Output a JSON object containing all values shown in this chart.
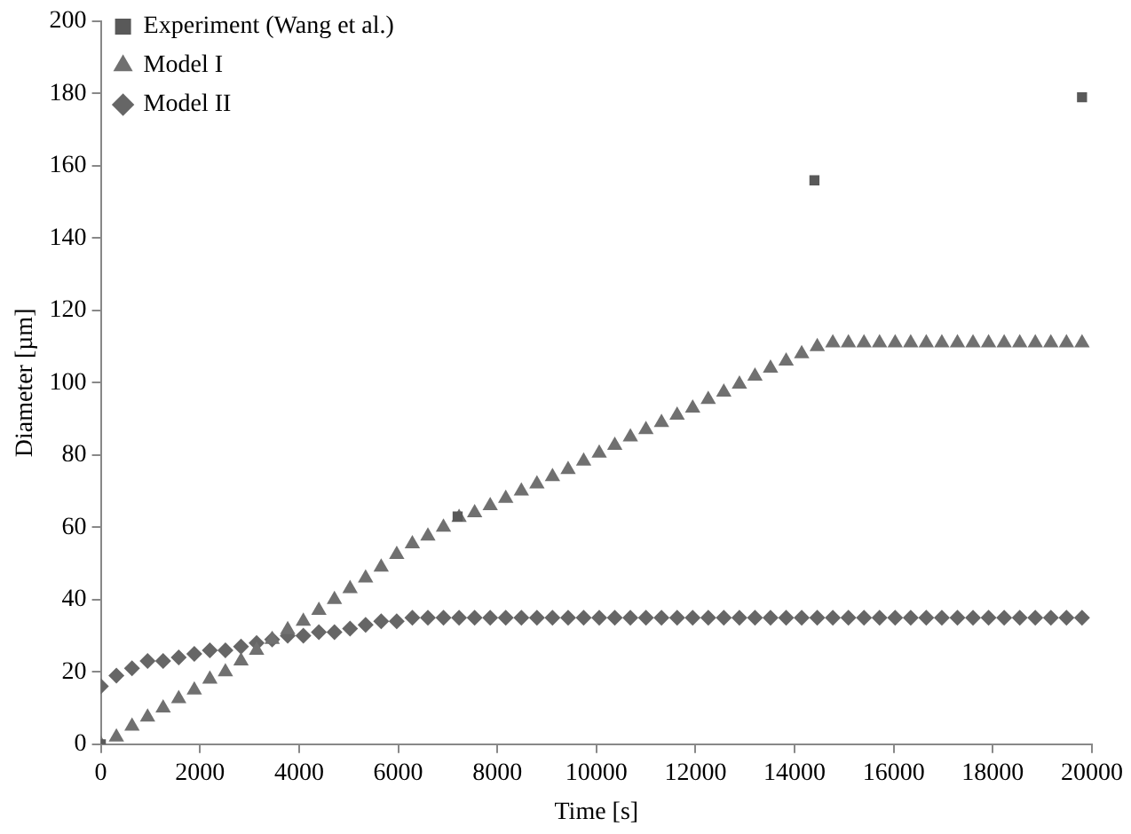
{
  "chart_data": {
    "type": "scatter",
    "xlabel": "Time [s]",
    "ylabel": "Diameter [µm]",
    "xlim": [
      0,
      20000
    ],
    "xticks": [
      0,
      2000,
      4000,
      6000,
      8000,
      10000,
      12000,
      14000,
      16000,
      18000,
      20000
    ],
    "ylim": [
      0,
      200
    ],
    "yticks": [
      0,
      20,
      40,
      60,
      80,
      100,
      120,
      140,
      160,
      180,
      200
    ],
    "grid": false,
    "legend": "top left",
    "series": [
      {
        "name": "Experiment (Wang et al.)",
        "color": "#595959",
        "marker": "square",
        "x": [
          0,
          7200,
          14400,
          19800
        ],
        "values": [
          0,
          63,
          156,
          179
        ]
      },
      {
        "name": "Model I",
        "color": "#707070",
        "marker": "triangle",
        "x": [
          0,
          314,
          629,
          943,
          1257,
          1571,
          1886,
          2200,
          2514,
          2829,
          3143,
          3457,
          3771,
          4086,
          4400,
          4714,
          5029,
          5343,
          5657,
          5971,
          6286,
          6600,
          6914,
          7229,
          7543,
          7857,
          8171,
          8486,
          8800,
          9114,
          9429,
          9743,
          10057,
          10371,
          10686,
          11000,
          11314,
          11629,
          11943,
          12257,
          12571,
          12886,
          13200,
          13514,
          13829,
          14143,
          14457,
          14771,
          15086,
          15400,
          15714,
          16029,
          16343,
          16657,
          16971,
          17286,
          17600,
          17914,
          18229,
          18543,
          18857,
          19171,
          19486,
          19800
        ],
        "values": [
          0,
          2,
          5,
          7.5,
          10,
          12.6,
          15,
          18,
          20,
          23,
          26,
          29,
          31.7,
          34,
          37,
          40,
          43,
          46,
          49,
          52.5,
          55.4,
          57.6,
          60,
          62.7,
          64,
          66,
          68,
          70,
          72,
          74,
          76,
          78.3,
          80.5,
          82.7,
          85,
          87,
          89,
          91,
          93,
          95.4,
          97.4,
          99.6,
          101.8,
          104,
          106,
          108,
          110,
          111,
          111,
          111,
          111,
          111,
          111,
          111,
          111,
          111,
          111,
          111,
          111,
          111,
          111,
          111,
          111,
          111
        ]
      },
      {
        "name": "Model II",
        "color": "#666666",
        "marker": "diamond",
        "x": [
          0,
          314,
          629,
          943,
          1257,
          1571,
          1886,
          2200,
          2514,
          2829,
          3143,
          3457,
          3771,
          4086,
          4400,
          4714,
          5029,
          5343,
          5657,
          5971,
          6286,
          6600,
          6914,
          7229,
          7543,
          7857,
          8171,
          8486,
          8800,
          9114,
          9429,
          9743,
          10057,
          10371,
          10686,
          11000,
          11314,
          11629,
          11943,
          12257,
          12571,
          12886,
          13200,
          13514,
          13829,
          14143,
          14457,
          14771,
          15086,
          15400,
          15714,
          16029,
          16343,
          16657,
          16971,
          17286,
          17600,
          17914,
          18229,
          18543,
          18857,
          19171,
          19486,
          19800
        ],
        "values": [
          16,
          19,
          21,
          23,
          23,
          24,
          25,
          26,
          26,
          27,
          28,
          29,
          30,
          30,
          31,
          31,
          32,
          33,
          34,
          34,
          35,
          35,
          35,
          35,
          35,
          35,
          35,
          35,
          35,
          35,
          35,
          35,
          35,
          35,
          35,
          35,
          35,
          35,
          35,
          35,
          35,
          35,
          35,
          35,
          35,
          35,
          35,
          35,
          35,
          35,
          35,
          35,
          35,
          35,
          35,
          35,
          35,
          35,
          35,
          35,
          35,
          35,
          35,
          35
        ]
      }
    ]
  }
}
